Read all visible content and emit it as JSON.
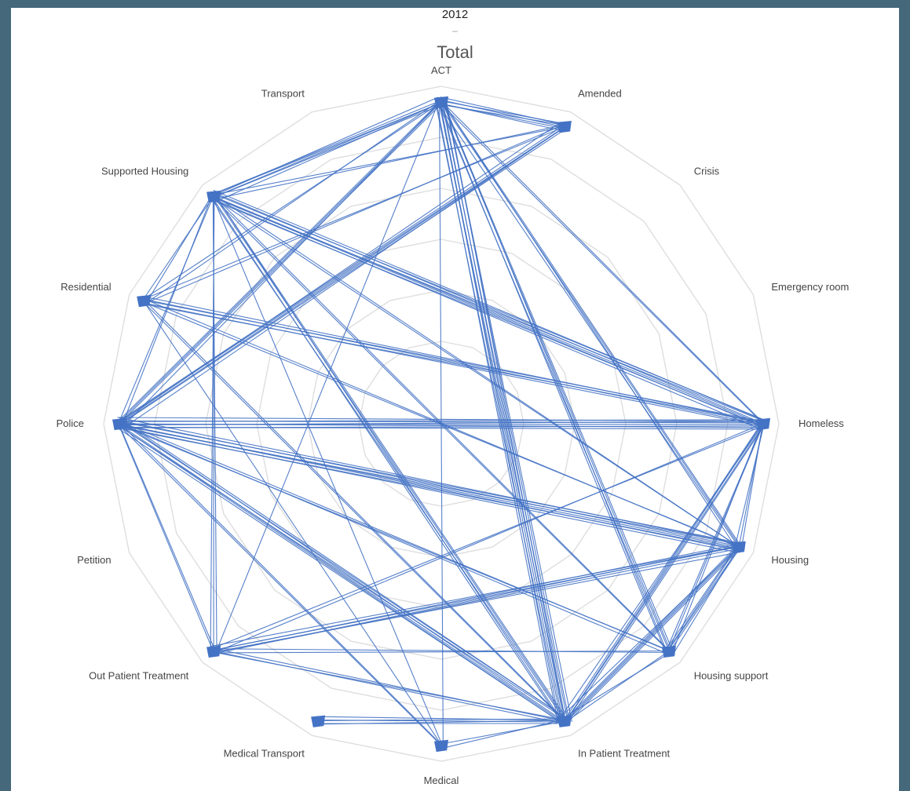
{
  "year": "2012",
  "title_separator": "–",
  "title": "Total",
  "nodes": [
    {
      "id": "ACT",
      "label": "ACT"
    },
    {
      "id": "Amended",
      "label": "Amended"
    },
    {
      "id": "Crisis",
      "label": "Crisis"
    },
    {
      "id": "Emergency room",
      "label": "Emergency room"
    },
    {
      "id": "Homeless",
      "label": "Homeless"
    },
    {
      "id": "Housing",
      "label": "Housing"
    },
    {
      "id": "Housing support",
      "label": "Housing support"
    },
    {
      "id": "In Patient Treatment",
      "label": "In Patient Treatment"
    },
    {
      "id": "Medical",
      "label": "Medical"
    },
    {
      "id": "Medical Transport",
      "label": "Medical Transport"
    },
    {
      "id": "Out Patient Treatment",
      "label": "Out Patient Treatment"
    },
    {
      "id": "Petition",
      "label": "Petition"
    },
    {
      "id": "Police",
      "label": "Police"
    },
    {
      "id": "Residential",
      "label": "Residential"
    },
    {
      "id": "Supported Housing",
      "label": "Supported Housing"
    },
    {
      "id": "Transport",
      "label": "Transport"
    }
  ],
  "edges": [
    [
      "ACT",
      "Amended",
      6
    ],
    [
      "ACT",
      "Supported Housing",
      6
    ],
    [
      "ACT",
      "Police",
      4
    ],
    [
      "ACT",
      "In Patient Treatment",
      10
    ],
    [
      "ACT",
      "Housing support",
      5
    ],
    [
      "ACT",
      "Housing",
      4
    ],
    [
      "ACT",
      "Homeless",
      2
    ],
    [
      "ACT",
      "Residential",
      2
    ],
    [
      "ACT",
      "Medical",
      1
    ],
    [
      "ACT",
      "Out Patient Treatment",
      1
    ],
    [
      "Amended",
      "Police",
      6
    ],
    [
      "Amended",
      "Supported Housing",
      2
    ],
    [
      "Amended",
      "Residential",
      2
    ],
    [
      "Supported Housing",
      "Homeless",
      8
    ],
    [
      "Supported Housing",
      "In Patient Treatment",
      5
    ],
    [
      "Supported Housing",
      "Out Patient Treatment",
      3
    ],
    [
      "Supported Housing",
      "Housing",
      2
    ],
    [
      "Supported Housing",
      "Police",
      2
    ],
    [
      "Supported Housing",
      "Residential",
      2
    ],
    [
      "Supported Housing",
      "Housing support",
      2
    ],
    [
      "Supported Housing",
      "Medical",
      1
    ],
    [
      "Residential",
      "Homeless",
      5
    ],
    [
      "Residential",
      "In Patient Treatment",
      2
    ],
    [
      "Residential",
      "Housing",
      2
    ],
    [
      "Residential",
      "Medical",
      1
    ],
    [
      "Police",
      "Homeless",
      8
    ],
    [
      "Police",
      "Housing",
      8
    ],
    [
      "Police",
      "In Patient Treatment",
      7
    ],
    [
      "Police",
      "Housing support",
      3
    ],
    [
      "Police",
      "Out Patient Treatment",
      2
    ],
    [
      "Police",
      "Medical",
      2
    ],
    [
      "Out Patient Treatment",
      "Housing",
      6
    ],
    [
      "Out Patient Treatment",
      "In Patient Treatment",
      3
    ],
    [
      "Out Patient Treatment",
      "Housing support",
      2
    ],
    [
      "Out Patient Treatment",
      "Homeless",
      2
    ],
    [
      "Medical Transport",
      "In Patient Treatment",
      5
    ],
    [
      "In Patient Treatment",
      "Housing",
      5
    ],
    [
      "In Patient Treatment",
      "Homeless",
      5
    ],
    [
      "In Patient Treatment",
      "Medical",
      2
    ],
    [
      "In Patient Treatment",
      "Housing support",
      2
    ],
    [
      "Housing",
      "Housing support",
      5
    ],
    [
      "Housing",
      "Homeless",
      3
    ],
    [
      "Homeless",
      "Housing support",
      3
    ]
  ]
}
